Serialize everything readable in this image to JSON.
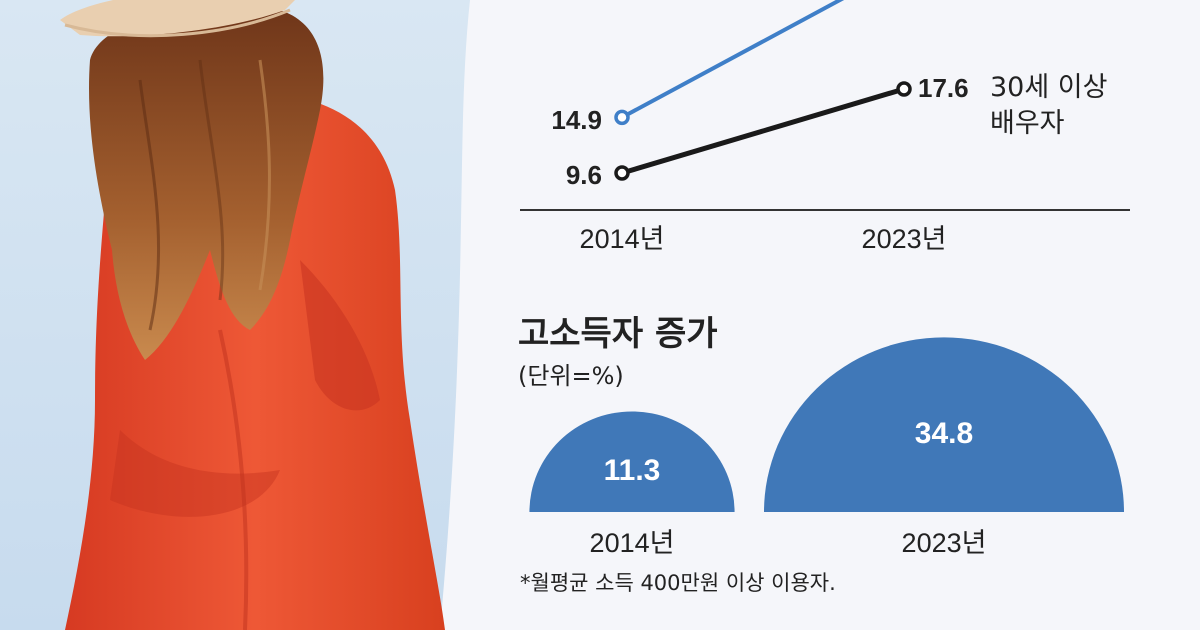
{
  "chart_data": [
    {
      "type": "line",
      "categories": [
        "2014년",
        "2023년"
      ],
      "series": [
        {
          "name": "",
          "values": [
            14.9,
            null
          ],
          "color": "#3f7fc8"
        },
        {
          "name": "30세 이상\n배우자",
          "values": [
            9.6,
            17.6
          ],
          "color": "#1a1a1a"
        }
      ],
      "value_labels": [
        "14.9",
        "9.6",
        "17.6"
      ],
      "series_label_lines": [
        "30세 이상",
        "배우자"
      ],
      "grid": false
    },
    {
      "type": "area",
      "title": "고소득자 증가",
      "unit": "(단위=%)",
      "categories": [
        "2014년",
        "2023년"
      ],
      "values": [
        11.3,
        34.8
      ],
      "value_labels": [
        "11.3",
        "34.8"
      ],
      "color": "#4078b8",
      "footnote": "*월평균 소득 400만원 이상 이용자."
    }
  ],
  "colors": {
    "background": "#f5f6fa",
    "accent_blue": "#3f7fc8",
    "bubble_blue": "#4078b8",
    "dress_red": "#e24a2f",
    "hair_brown": "#8a4a24"
  }
}
